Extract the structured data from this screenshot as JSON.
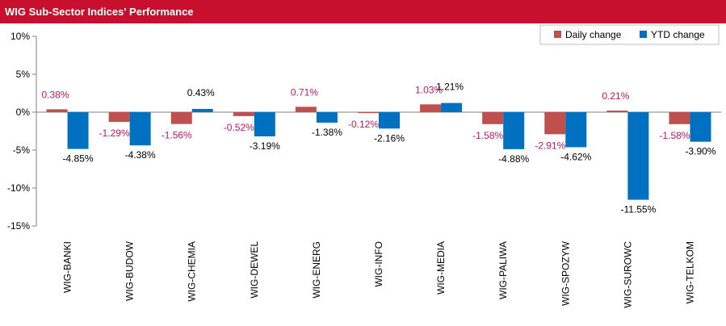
{
  "header": {
    "title": "WIG Sub-Sector Indices' Performance"
  },
  "colors": {
    "header_bg": "#c8102e",
    "daily": "#c0504d",
    "ytd": "#0070c0",
    "daily_label": "#c2185b",
    "ytd_label": "#000000"
  },
  "chart_data": {
    "type": "bar",
    "title": "WIG Sub-Sector Indices' Performance",
    "categories": [
      "WIG-BANKI",
      "WIG-BUDOW",
      "WIG-CHEMIA",
      "WIG-DEWEL",
      "WIG-ENERG",
      "WIG-INFO",
      "WIG-MEDIA",
      "WIG-PALIWA",
      "WIG-SPOZYW",
      "WIG-SUROWC",
      "WIG-TELKOM"
    ],
    "series": [
      {
        "name": "Daily change",
        "values": [
          0.38,
          -1.29,
          -1.56,
          -0.52,
          0.71,
          -0.12,
          1.03,
          -1.58,
          -2.91,
          0.21,
          -1.58
        ],
        "labels": [
          "0.38%",
          "-1.29%",
          "-1.56%",
          "-0.52%",
          "0.71%",
          "-0.12%",
          "1.03%",
          "-1.58%",
          "-2.91%",
          "0.21%",
          "-1.58%"
        ]
      },
      {
        "name": "YTD change",
        "values": [
          -4.85,
          -4.38,
          0.43,
          -3.19,
          -1.38,
          -2.16,
          1.21,
          -4.88,
          -4.62,
          -11.55,
          -3.9
        ],
        "labels": [
          "-4.85%",
          "-4.38%",
          "0.43%",
          "-3.19%",
          "-1.38%",
          "-2.16%",
          "1.21%",
          "-4.88%",
          "-4.62%",
          "-11.55%",
          "-3.90%"
        ]
      }
    ],
    "ylim": [
      -15,
      10
    ],
    "yticks": [
      10,
      5,
      0,
      -5,
      -10,
      -15
    ],
    "ytick_labels": [
      "10%",
      "5%",
      "0%",
      "-5%",
      "-10%",
      "-15%"
    ],
    "legend": {
      "position": "top-right",
      "entries": [
        "Daily change",
        "YTD change"
      ]
    },
    "grid": false,
    "xlabel": "",
    "ylabel": ""
  }
}
